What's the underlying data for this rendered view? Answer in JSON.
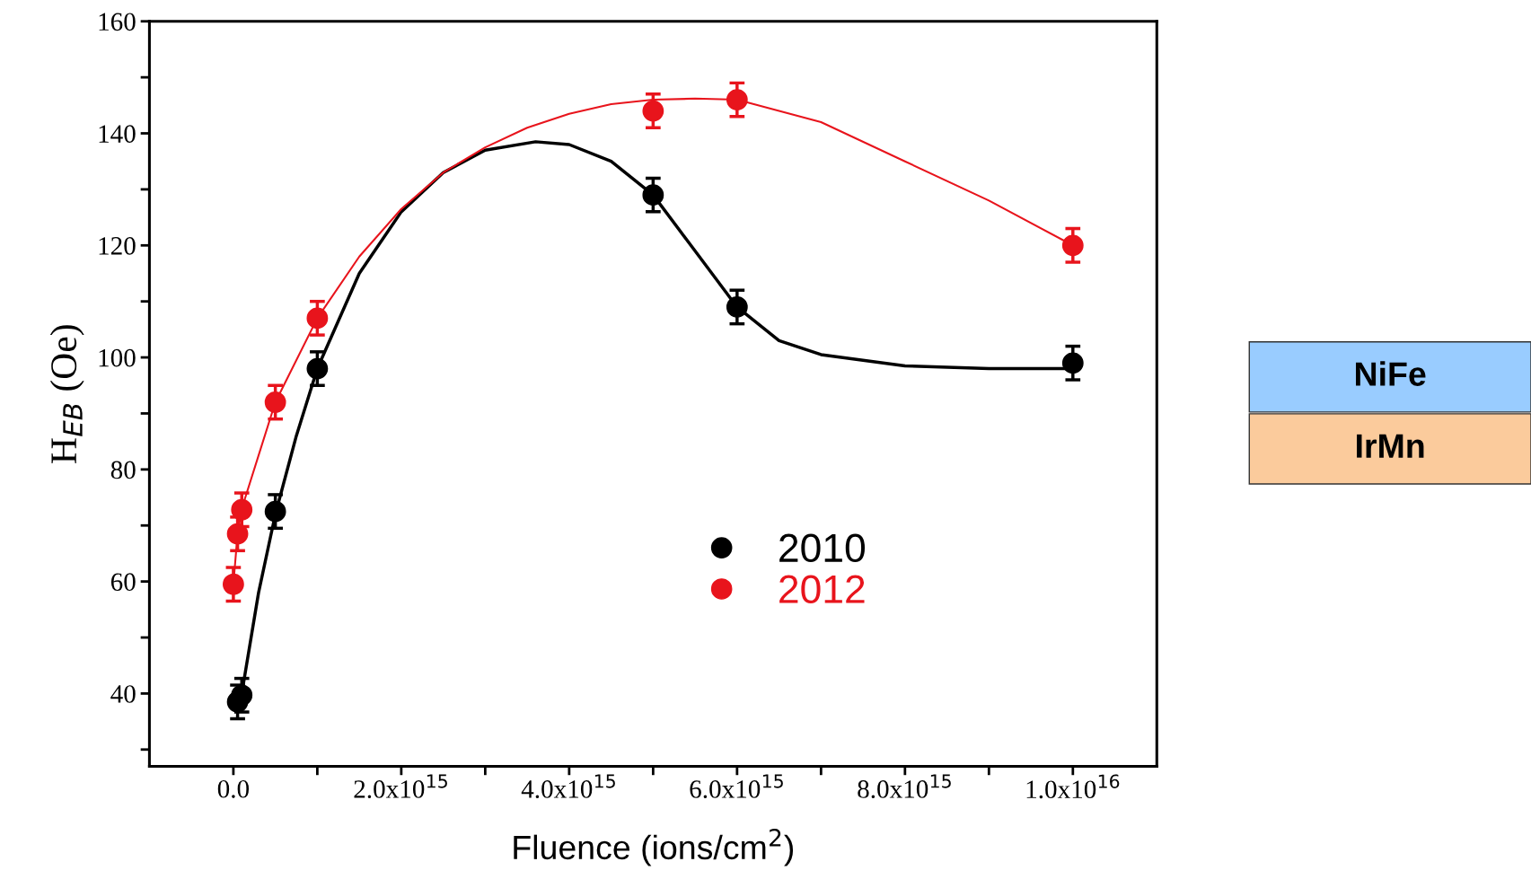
{
  "chart_data": {
    "type": "scatter",
    "xlabel": "Fluence (ions/cm$^{2}$)",
    "ylabel": "H$_{EB}$ (Oe)",
    "xlim": [
      -1000000000000000.0,
      1.1e+16
    ],
    "ylim": [
      27,
      160
    ],
    "xticks": [
      {
        "value": 0,
        "label": "0.0"
      },
      {
        "value": 1000000000000000.0,
        "label": null
      },
      {
        "value": 2000000000000000.0,
        "label": "2.0x10$^{15}$"
      },
      {
        "value": 3000000000000000.0,
        "label": null
      },
      {
        "value": 4000000000000000.0,
        "label": "4.0x10$^{15}$"
      },
      {
        "value": 5000000000000000.0,
        "label": null
      },
      {
        "value": 6000000000000000.0,
        "label": "6.0x10$^{15}$"
      },
      {
        "value": 7000000000000000.0,
        "label": null
      },
      {
        "value": 8000000000000000.0,
        "label": "8.0x10$^{15}$"
      },
      {
        "value": 9000000000000000.0,
        "label": null
      },
      {
        "value": 1e+16,
        "label": "1.0x10$^{16}$"
      }
    ],
    "yticks": [
      {
        "value": 30,
        "label": null
      },
      40,
      {
        "value": 50,
        "label": null
      },
      60,
      {
        "value": 70,
        "label": null
      },
      80,
      {
        "value": 90,
        "label": null
      },
      100,
      {
        "value": 110,
        "label": null
      },
      120,
      {
        "value": 130,
        "label": null
      },
      140,
      {
        "value": 150,
        "label": null
      },
      160
    ],
    "grid": false,
    "legend": "bottom",
    "marker": "circle",
    "series": [
      {
        "name": "2010",
        "color": "#000000",
        "x": [
          50000000000000.0,
          100000000000000.0,
          500000000000000.0,
          1000000000000000.0,
          5000000000000000.0,
          6000000000000000.0,
          1e+16
        ],
        "values": [
          38.5,
          39.7,
          72.5,
          98,
          129,
          109,
          99
        ],
        "errors": [
          3,
          3,
          3,
          3,
          3,
          3,
          3
        ]
      },
      {
        "name": "2012",
        "color": "#e8141c",
        "x": [
          0,
          50000000000000.0,
          100000000000000.0,
          500000000000000.0,
          1000000000000000.0,
          5000000000000000.0,
          6000000000000000.0,
          1e+16
        ],
        "values": [
          59.5,
          68.5,
          72.8,
          92,
          107,
          144,
          146,
          120
        ],
        "errors": [
          3,
          3,
          3,
          3,
          3,
          3,
          3,
          3
        ]
      },
      {
        "type": "line",
        "color": "#000000",
        "marker": "none",
        "x": [
          30000000000000.0,
          100000000000000.0,
          300000000000000.0,
          500000000000000.0,
          750000000000000.0,
          1000000000000000.0,
          1500000000000000.0,
          2000000000000000.0,
          2500000000000000.0,
          3000000000000000.0,
          3600000000000000.0,
          4000000000000000.0,
          4500000000000000.0,
          5000000000000000.0,
          5500000000000000.0,
          6000000000000000.0,
          6500000000000000.0,
          7000000000000000.0,
          8000000000000000.0,
          9000000000000000.0,
          1e+16
        ],
        "values": [
          40,
          40,
          58,
          72,
          86,
          98,
          115,
          126,
          133,
          137,
          138.5,
          138,
          135,
          129,
          119,
          109,
          103,
          100.5,
          98.5,
          98,
          98
        ]
      },
      {
        "type": "line",
        "color": "#e8141c",
        "marker": "none",
        "x": [
          0,
          50000000000000.0,
          100000000000000.0,
          500000000000000.0,
          1000000000000000.0,
          1500000000000000.0,
          2000000000000000.0,
          2500000000000000.0,
          3000000000000000.0,
          3500000000000000.0,
          4000000000000000.0,
          4500000000000000.0,
          5000000000000000.0,
          5500000000000000.0,
          6000000000000000.0,
          7000000000000000.0,
          8000000000000000.0,
          9000000000000000.0,
          1e+16
        ],
        "values": [
          59.5,
          68.5,
          73,
          92,
          107,
          118,
          126.5,
          133,
          137.5,
          141,
          143.5,
          145.2,
          146,
          146.2,
          146,
          142,
          135,
          128,
          120
        ]
      }
    ],
    "annotations": [
      "NiFe",
      "IrMn"
    ]
  }
}
